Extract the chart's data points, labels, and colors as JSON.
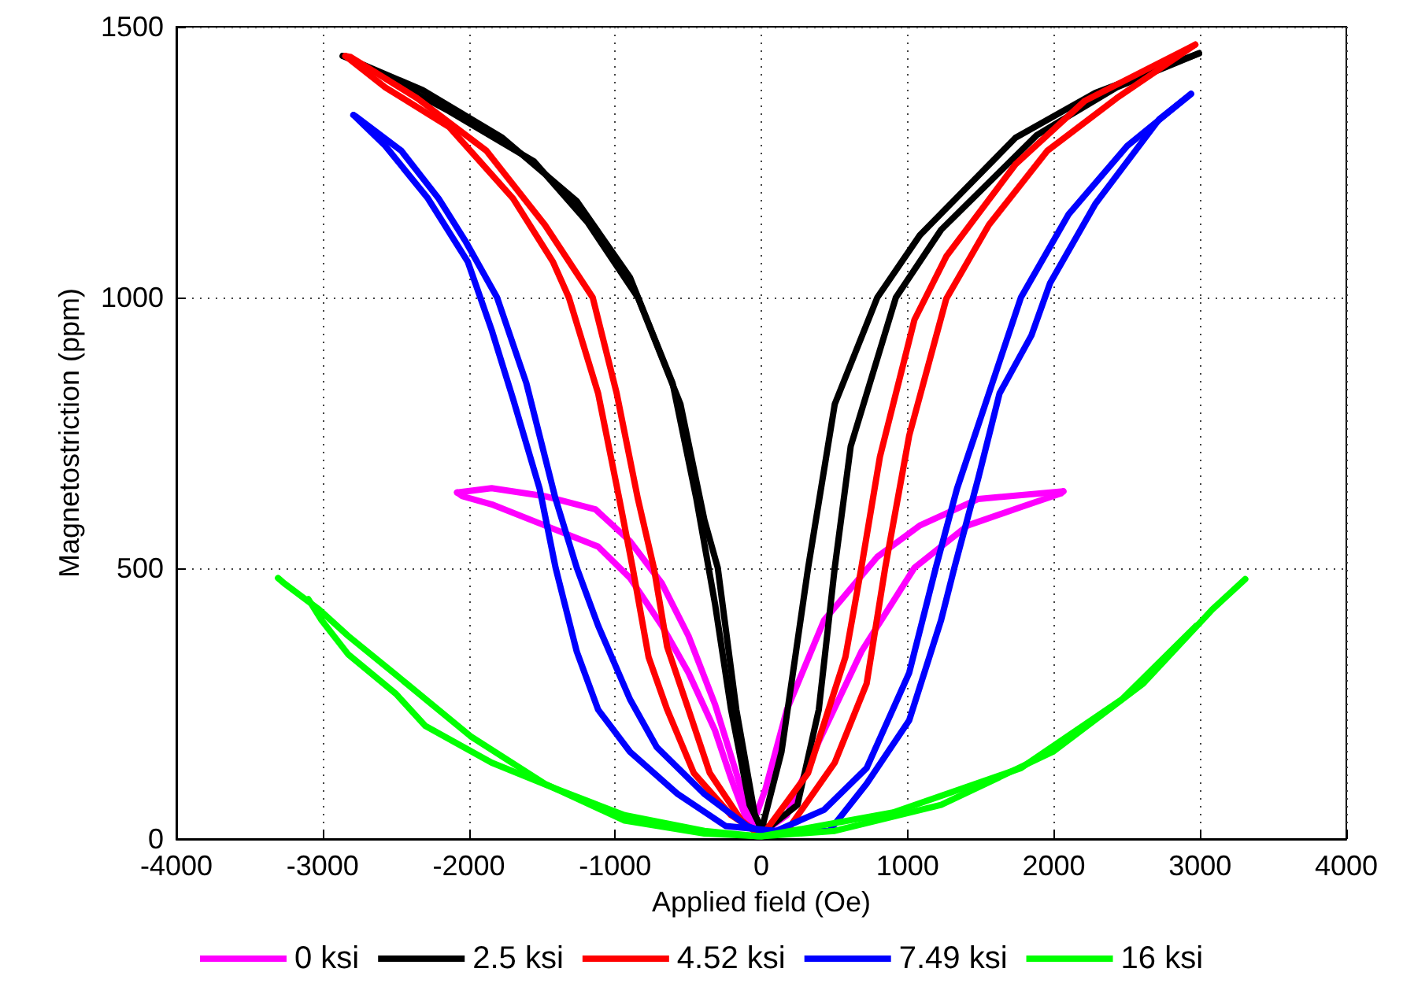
{
  "chart_data": {
    "type": "line",
    "xlabel": "Applied field (Oe)",
    "ylabel": "Magnetostriction (ppm)",
    "xlim": [
      -4000,
      4000
    ],
    "xticks": [
      -4000,
      -3000,
      -2000,
      -1000,
      0,
      1000,
      2000,
      3000,
      4000
    ],
    "ylim": [
      0,
      1500
    ],
    "yticks": [
      0,
      500,
      1000,
      1500
    ],
    "grid": true,
    "legend": "bottom",
    "marker": "none",
    "line_style": "solid",
    "series": [
      {
        "name": "0 ksi",
        "color": "#ff00ff",
        "x": [
          -2080,
          -2044,
          -1844,
          -1480,
          -1116,
          -898,
          -680,
          -498,
          -316,
          -207,
          -98,
          0,
          175,
          393,
          684,
          1047,
          1411,
          1775,
          2047,
          2065
        ],
        "values": [
          640,
          633,
          618,
          579,
          540,
          482,
          394,
          307,
          200,
          112,
          34,
          10,
          44,
          180,
          346,
          501,
          579,
          613,
          638,
          642
        ]
      },
      {
        "color": "#ff00ff",
        "x": [
          -2080,
          -1844,
          -1480,
          -1135,
          -898,
          -680,
          -498,
          -316,
          -171,
          -62,
          29,
          175,
          429,
          793,
          1084,
          1484,
          2065
        ],
        "values": [
          640,
          648,
          633,
          609,
          550,
          472,
          375,
          248,
          122,
          24,
          93,
          239,
          404,
          521,
          579,
          628,
          642
        ]
      },
      {
        "name": "2.5 ksi",
        "color": "#000000",
        "x": [
          -2862,
          -2825,
          -2135,
          -1553,
          -1189,
          -844,
          -553,
          -389,
          -298,
          -171,
          -44,
          0,
          65,
          247,
          393,
          502,
          611,
          920,
          1229,
          1884,
          2429,
          2993
        ],
        "values": [
          1446,
          1444,
          1344,
          1251,
          1139,
          1000,
          803,
          589,
          501,
          239,
          44,
          20,
          24,
          63,
          239,
          501,
          725,
          1000,
          1125,
          1300,
          1388,
          1451
        ]
      },
      {
        "color": "#000000",
        "x": [
          -2862,
          -2316,
          -1771,
          -1262,
          -898,
          -607,
          -444,
          -316,
          -207,
          -80,
          -25,
          0,
          138,
          320,
          502,
          793,
          1084,
          1738,
          2284,
          2993
        ],
        "values": [
          1446,
          1383,
          1295,
          1178,
          1037,
          842,
          628,
          433,
          239,
          63,
          34,
          15,
          161,
          501,
          803,
          1000,
          1115,
          1295,
          1378,
          1451
        ]
      },
      {
        "name": "4.52 ksi",
        "color": "#ff0000",
        "x": [
          -2844,
          -2807,
          -2353,
          -1880,
          -1480,
          -1153,
          -989,
          -844,
          -735,
          -644,
          -498,
          -353,
          -135,
          -25,
          175,
          502,
          720,
          847,
          1011,
          1265,
          1556,
          1956,
          2429,
          2967
        ],
        "values": [
          1446,
          1444,
          1368,
          1271,
          1134,
          1000,
          823,
          628,
          501,
          355,
          239,
          122,
          34,
          10,
          15,
          141,
          287,
          501,
          745,
          998,
          1134,
          1271,
          1368,
          1467
        ]
      },
      {
        "color": "#ff0000",
        "x": [
          -2844,
          -2571,
          -2135,
          -1698,
          -1425,
          -1316,
          -1116,
          -971,
          -880,
          -771,
          -644,
          -462,
          -207,
          -44,
          29,
          320,
          575,
          684,
          811,
          1047,
          1265,
          1738,
          2211,
          2967
        ],
        "values": [
          1446,
          1388,
          1315,
          1183,
          1066,
          1000,
          823,
          628,
          501,
          336,
          239,
          122,
          44,
          15,
          15,
          122,
          336,
          501,
          706,
          959,
          1076,
          1246,
          1363,
          1467
        ]
      },
      {
        "name": "7.49 ksi",
        "color": "#0000ff",
        "x": [
          -2789,
          -2771,
          -2462,
          -2207,
          -2025,
          -1807,
          -1607,
          -1407,
          -1262,
          -1116,
          -898,
          -716,
          -389,
          -98,
          0,
          465,
          720,
          1011,
          1229,
          1320,
          1484,
          1629,
          1847,
          1975,
          2284,
          2720,
          2938
        ],
        "values": [
          1337,
          1334,
          1271,
          1183,
          1105,
          1000,
          842,
          628,
          501,
          394,
          258,
          170,
          83,
          24,
          15,
          15,
          102,
          219,
          404,
          501,
          667,
          823,
          930,
          1027,
          1173,
          1329,
          1376
        ]
      },
      {
        "color": "#0000ff",
        "x": [
          -2789,
          -2571,
          -2280,
          -2007,
          -1844,
          -1698,
          -1516,
          -1407,
          -1262,
          -1116,
          -898,
          -571,
          -244,
          102,
          429,
          720,
          1011,
          1193,
          1338,
          1556,
          1775,
          2102,
          2502,
          2938
        ],
        "values": [
          1337,
          1280,
          1183,
          1066,
          940,
          813,
          647,
          501,
          346,
          239,
          161,
          83,
          24,
          15,
          54,
          131,
          307,
          501,
          647,
          823,
          1000,
          1154,
          1280,
          1376
        ]
      },
      {
        "name": "16 ksi",
        "color": "#00ff00",
        "x": [
          -3305,
          -3262,
          -3025,
          -2825,
          -2425,
          -1989,
          -1480,
          -935,
          -389,
          0,
          502,
          1229,
          1993,
          2611,
          3084,
          3309
        ],
        "values": [
          482,
          472,
          424,
          375,
          287,
          190,
          102,
          34,
          10,
          5,
          15,
          63,
          161,
          287,
          424,
          480
        ]
      },
      {
        "color": "#00ff00",
        "x": [
          -3098,
          -3007,
          -2825,
          -2498,
          -2298,
          -1844,
          -1407,
          -935,
          -389,
          -25,
          0,
          902,
          1775,
          2465,
          2975
        ],
        "values": [
          443,
          404,
          341,
          268,
          209,
          141,
          93,
          44,
          15,
          5,
          5,
          49,
          131,
          258,
          394
        ]
      }
    ]
  }
}
